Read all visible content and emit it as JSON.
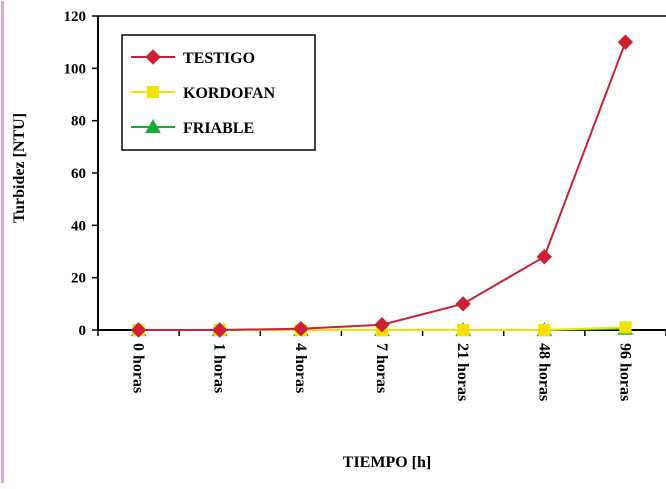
{
  "chart_data": {
    "type": "line",
    "title": "",
    "xlabel": "TIEMPO [h]",
    "ylabel": "Turbidez [NTU]",
    "categories": [
      "0 horas",
      "1 horas",
      "4 horas",
      "7 horas",
      "21 horas",
      "48 horas",
      "96 horas"
    ],
    "ylim": [
      0,
      120
    ],
    "yticks": [
      0,
      20,
      40,
      60,
      80,
      100,
      120
    ],
    "grid": false,
    "legend_position": "top-left",
    "series": [
      {
        "name": "TESTIGO",
        "values": [
          0,
          0,
          0.5,
          2,
          10,
          28,
          110
        ],
        "color": "#cc2036",
        "marker": "diamond"
      },
      {
        "name": "KORDOFAN",
        "values": [
          0,
          0,
          0,
          0,
          0,
          0,
          1
        ],
        "color": "#f2e200",
        "marker": "square"
      },
      {
        "name": "FRIABLE",
        "values": [
          0,
          0,
          0,
          0,
          0,
          0,
          0.5
        ],
        "color": "#1aa83a",
        "marker": "triangle"
      }
    ],
    "frame_color": "#e8a9b7"
  }
}
